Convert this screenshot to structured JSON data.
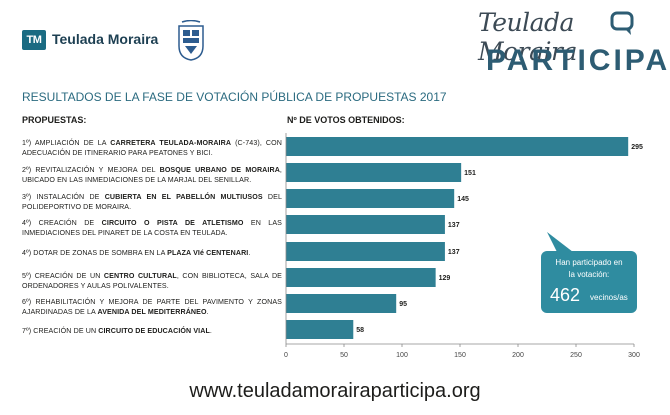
{
  "header": {
    "brand_mark": "TM",
    "brand_name": "Teulada Moraira",
    "participa_script": "Teulada Moraira",
    "participa_word": "PARTICIPA"
  },
  "title": "RESULTADOS DE LA FASE DE VOTACIÓN PÚBLICA DE PROPUESTAS 2017",
  "columns": {
    "proposals": "PROPUESTAS:",
    "votes": "Nº DE VOTOS OBTENIDOS:"
  },
  "proposals": [
    {
      "rank": "1º)",
      "pre": "AMPLIACIÓN DE LA ",
      "bold": "CARRETERA TEULADA-MORAIRA",
      "post": " (C-743), CON ADECUACIÓN DE ITINERARIO PARA PEATONES Y BICI."
    },
    {
      "rank": "2º)",
      "pre": "REVITALIZACIÓN Y MEJORA DEL ",
      "bold": "BOSQUE URBANO DE MORAIRA",
      "post": ", UBICADO EN LAS INMEDIACIONES DE LA MARJAL DEL SENILLAR."
    },
    {
      "rank": "3º)",
      "pre": "INSTALACIÓN DE ",
      "bold": "CUBIERTA EN EL PABELLÓN MULTIUSOS",
      "post": " DEL POLIDEPORTIVO DE MORAIRA."
    },
    {
      "rank": "4º)",
      "pre": "CREACIÓN DE ",
      "bold": "CIRCUITO O PISTA DE ATLETISMO",
      "post": " EN LAS INMEDIACIONES DEL PINARET DE LA COSTA EN TEULADA."
    },
    {
      "rank": "4º)",
      "pre": "DOTAR DE ZONAS DE SOMBRA EN LA ",
      "bold": "PLAZA VIé CENTENARI",
      "post": "."
    },
    {
      "rank": "5º)",
      "pre": "CREACIÓN DE UN ",
      "bold": "CENTRO CULTURAL",
      "post": ", CON BIBLIOTECA, SALA DE ORDENADORES Y AULAS POLIVALENTES."
    },
    {
      "rank": "6º)",
      "pre": "REHABILITACIÓN Y MEJORA DE PARTE DEL PAVIMENTO Y ZONAS AJARDINADAS DE LA ",
      "bold": "AVENIDA DEL MEDITERRÁNEO",
      "post": "."
    },
    {
      "rank": "7º)",
      "pre": "CREACIÓN DE UN ",
      "bold": "CIRCUITO DE EDUCACIÓN VIAL",
      "post": "."
    }
  ],
  "chart_data": {
    "type": "bar",
    "orientation": "horizontal",
    "categories": [
      "1º)",
      "2º)",
      "3º)",
      "4º)",
      "4º)",
      "5º)",
      "6º)",
      "7º)"
    ],
    "values": [
      295,
      151,
      145,
      137,
      137,
      129,
      95,
      58
    ],
    "xlim": [
      0,
      300
    ],
    "xticks": [
      0,
      50,
      100,
      150,
      200,
      250,
      300
    ],
    "grid": false,
    "bar_color": "#2f7f93"
  },
  "callout": {
    "line1": "Han participado en",
    "line2": "la votación:",
    "count": "462",
    "unit": "vecinos/as",
    "color": "#2f8ca0"
  },
  "website": "www.teuladamorairaparticipa.org"
}
